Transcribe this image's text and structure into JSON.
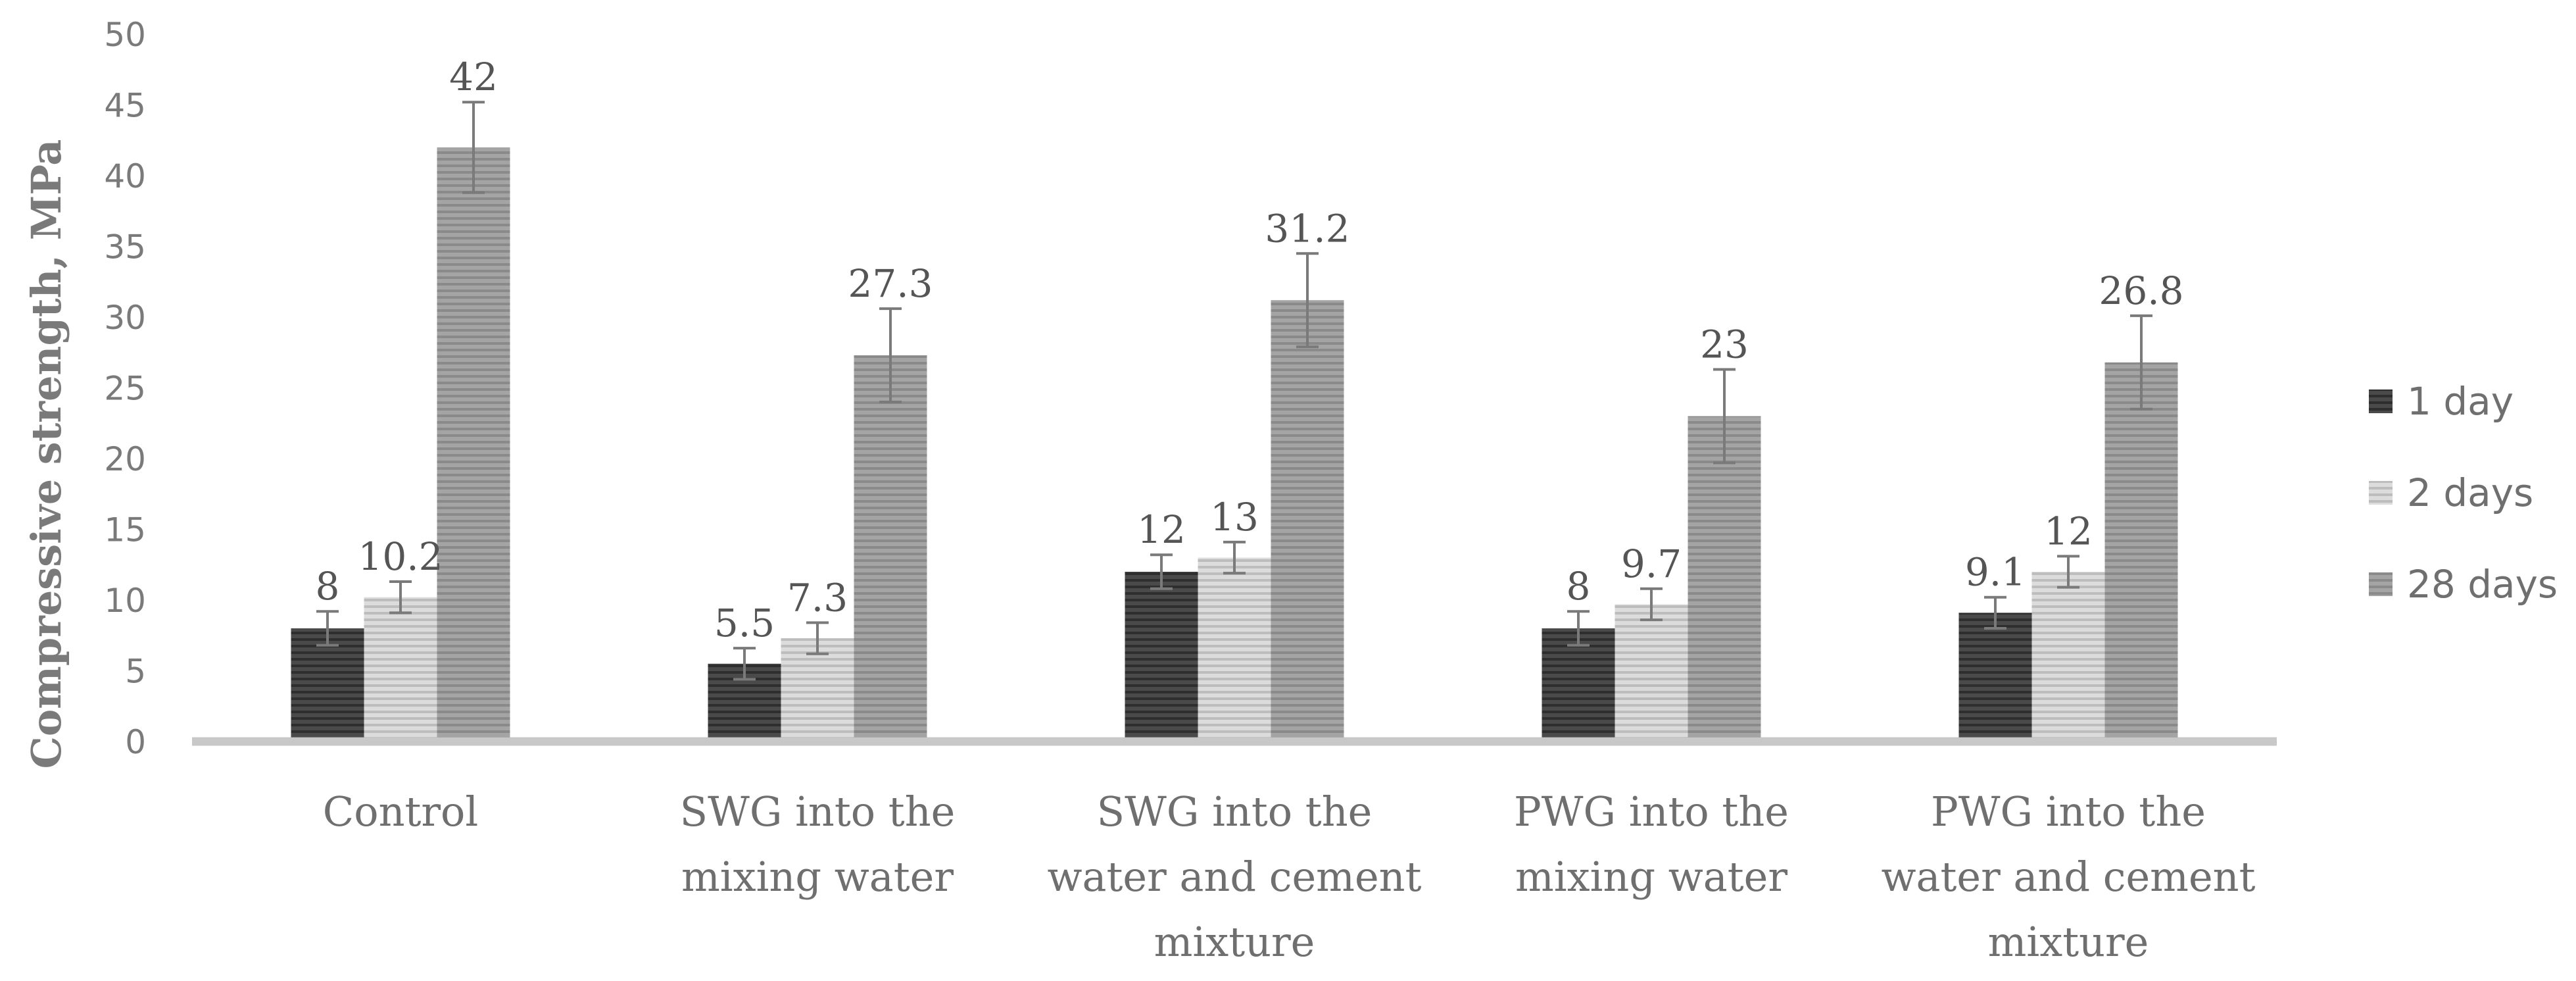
{
  "chart_data": {
    "type": "bar",
    "ylabel": "Compressive strength, MPa",
    "xlabel": "",
    "ylim": [
      0,
      50
    ],
    "yticks": [
      0,
      5,
      10,
      15,
      20,
      25,
      30,
      35,
      40,
      45,
      50
    ],
    "grid": false,
    "legend_position": "right",
    "categories": [
      [
        "Control"
      ],
      [
        "SWG into the",
        "mixing water"
      ],
      [
        "SWG into the",
        "water and cement",
        "mixture"
      ],
      [
        "PWG into the",
        "mixing water"
      ],
      [
        "PWG into the",
        "water and cement",
        "mixture"
      ]
    ],
    "series": [
      {
        "name": "1 day",
        "values": [
          8,
          5.5,
          12,
          8,
          9.1
        ],
        "labels": [
          "8",
          "5.5",
          "12",
          "8",
          "9.1"
        ],
        "errors": [
          1.2,
          1.1,
          1.2,
          1.2,
          1.1
        ],
        "color": "#4a4a4a",
        "stripe": "#2e2e2e"
      },
      {
        "name": "2 days",
        "values": [
          10.2,
          7.3,
          13,
          9.7,
          12
        ],
        "labels": [
          "10.2",
          "7.3",
          "13",
          "9.7",
          "12"
        ],
        "errors": [
          1.1,
          1.1,
          1.1,
          1.1,
          1.1
        ],
        "color": "#dcdcdc",
        "stripe": "#bdbdbd"
      },
      {
        "name": "28 days",
        "values": [
          42,
          27.3,
          31.2,
          23,
          26.8
        ],
        "labels": [
          "42",
          "27.3",
          "31.2",
          "23",
          "26.8"
        ],
        "errors": [
          3.2,
          3.3,
          3.3,
          3.3,
          3.3
        ],
        "color": "#a4a4a4",
        "stripe": "#8a8a8a"
      }
    ]
  }
}
